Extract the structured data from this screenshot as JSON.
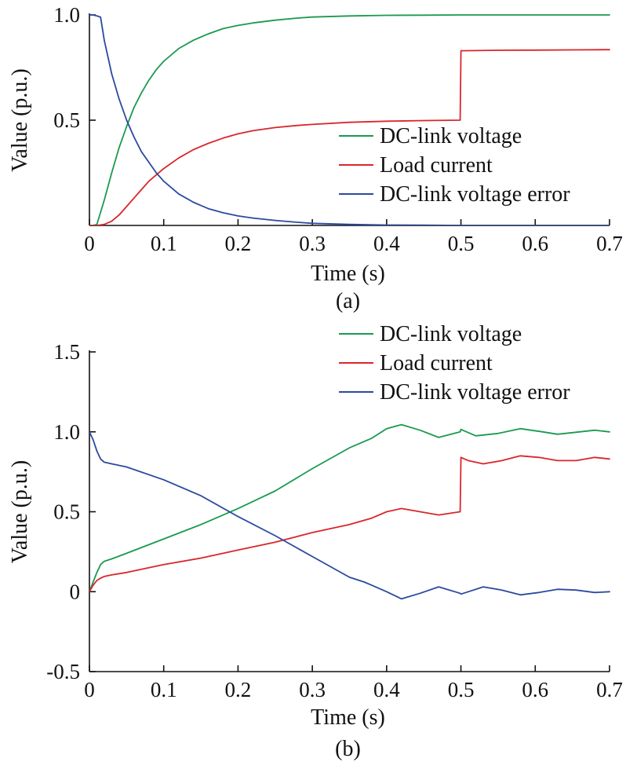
{
  "chart_data": [
    {
      "type": "line",
      "caption": "(a)",
      "xlabel": "Time (s)",
      "ylabel": "Value (p.u.)",
      "xlim": [
        0,
        0.7
      ],
      "ylim": [
        0,
        1.0
      ],
      "x_ticks": [
        0,
        0.1,
        0.2,
        0.3,
        0.4,
        0.5,
        0.6,
        0.7
      ],
      "x_tick_labels": [
        "0",
        "0.1",
        "0.2",
        "0.3",
        "0.4",
        "0.5",
        "0.6",
        "0.7"
      ],
      "y_ticks": [
        0.5,
        1.0
      ],
      "y_tick_labels": [
        "0.5",
        "1.0"
      ],
      "legend_position": "lower-right",
      "grid": false,
      "series": [
        {
          "name": "DC-link voltage",
          "color": "#1a9a50",
          "x": [
            0,
            0.005,
            0.01,
            0.02,
            0.03,
            0.04,
            0.05,
            0.06,
            0.07,
            0.08,
            0.09,
            0.1,
            0.12,
            0.14,
            0.16,
            0.18,
            0.2,
            0.22,
            0.25,
            0.28,
            0.3,
            0.35,
            0.4,
            0.45,
            0.5,
            0.55,
            0.6,
            0.65,
            0.7
          ],
          "y": [
            0,
            0.0,
            0.005,
            0.12,
            0.25,
            0.37,
            0.47,
            0.56,
            0.63,
            0.69,
            0.74,
            0.78,
            0.84,
            0.88,
            0.91,
            0.935,
            0.95,
            0.962,
            0.975,
            0.985,
            0.99,
            0.995,
            0.998,
            0.999,
            1.0,
            1.0,
            1.0,
            1.0,
            1.0
          ]
        },
        {
          "name": "Load current",
          "color": "#d9262c",
          "x": [
            0,
            0.01,
            0.02,
            0.03,
            0.04,
            0.05,
            0.06,
            0.07,
            0.08,
            0.09,
            0.1,
            0.12,
            0.14,
            0.16,
            0.18,
            0.2,
            0.22,
            0.25,
            0.28,
            0.3,
            0.35,
            0.4,
            0.45,
            0.499,
            0.5,
            0.55,
            0.6,
            0.65,
            0.7
          ],
          "y": [
            0,
            0.0,
            0.005,
            0.02,
            0.05,
            0.09,
            0.13,
            0.17,
            0.21,
            0.24,
            0.27,
            0.32,
            0.36,
            0.39,
            0.415,
            0.435,
            0.45,
            0.465,
            0.475,
            0.48,
            0.49,
            0.495,
            0.498,
            0.5,
            0.83,
            0.832,
            0.833,
            0.834,
            0.835
          ]
        },
        {
          "name": "DC-link voltage error",
          "color": "#2b4aa0",
          "x": [
            0,
            0.005,
            0.01,
            0.015,
            0.02,
            0.03,
            0.04,
            0.05,
            0.06,
            0.07,
            0.08,
            0.09,
            0.1,
            0.12,
            0.14,
            0.16,
            0.18,
            0.2,
            0.22,
            0.25,
            0.28,
            0.3,
            0.35,
            0.4,
            0.45,
            0.5,
            0.55,
            0.6,
            0.65,
            0.7
          ],
          "y": [
            1.0,
            1.0,
            0.995,
            0.99,
            0.88,
            0.72,
            0.6,
            0.5,
            0.42,
            0.35,
            0.3,
            0.25,
            0.21,
            0.15,
            0.11,
            0.08,
            0.06,
            0.045,
            0.035,
            0.024,
            0.015,
            0.01,
            0.005,
            0.002,
            0.001,
            0.0,
            0.0,
            0.0,
            0.0,
            0.0
          ]
        }
      ]
    },
    {
      "type": "line",
      "caption": "(b)",
      "xlabel": "Time (s)",
      "ylabel": "Value (p.u.)",
      "xlim": [
        0,
        0.7
      ],
      "ylim": [
        -0.5,
        1.5
      ],
      "x_ticks": [
        0,
        0.1,
        0.2,
        0.3,
        0.4,
        0.5,
        0.6,
        0.7
      ],
      "x_tick_labels": [
        "0",
        "0.1",
        "0.2",
        "0.3",
        "0.4",
        "0.5",
        "0.6",
        "0.7"
      ],
      "y_ticks": [
        -0.5,
        0,
        0.5,
        1.0,
        1.5
      ],
      "y_tick_labels": [
        "-0.5",
        "0",
        "0.5",
        "1.0",
        "1.5"
      ],
      "legend_position": "top-right",
      "grid": false,
      "series": [
        {
          "name": "DC-link voltage",
          "color": "#1a9a50",
          "x": [
            0,
            0.005,
            0.01,
            0.015,
            0.02,
            0.03,
            0.05,
            0.1,
            0.15,
            0.2,
            0.25,
            0.3,
            0.35,
            0.38,
            0.4,
            0.42,
            0.445,
            0.47,
            0.499,
            0.5,
            0.52,
            0.55,
            0.58,
            0.61,
            0.63,
            0.65,
            0.68,
            0.7
          ],
          "y": [
            0,
            0.06,
            0.12,
            0.17,
            0.19,
            0.205,
            0.24,
            0.33,
            0.42,
            0.52,
            0.63,
            0.77,
            0.9,
            0.96,
            1.02,
            1.045,
            1.01,
            0.965,
            1.0,
            1.015,
            0.975,
            0.99,
            1.02,
            1.0,
            0.985,
            0.995,
            1.01,
            1.0
          ]
        },
        {
          "name": "Load current",
          "color": "#d9262c",
          "x": [
            0,
            0.005,
            0.01,
            0.015,
            0.02,
            0.03,
            0.05,
            0.1,
            0.15,
            0.2,
            0.25,
            0.3,
            0.35,
            0.38,
            0.4,
            0.42,
            0.445,
            0.47,
            0.499,
            0.5,
            0.51,
            0.53,
            0.555,
            0.58,
            0.605,
            0.63,
            0.655,
            0.68,
            0.7
          ],
          "y": [
            0,
            0.04,
            0.07,
            0.085,
            0.095,
            0.105,
            0.12,
            0.17,
            0.21,
            0.26,
            0.31,
            0.37,
            0.42,
            0.46,
            0.5,
            0.52,
            0.5,
            0.48,
            0.5,
            0.84,
            0.82,
            0.8,
            0.82,
            0.85,
            0.84,
            0.82,
            0.82,
            0.84,
            0.83
          ]
        },
        {
          "name": "DC-link voltage error",
          "color": "#2b4aa0",
          "x": [
            0,
            0.005,
            0.01,
            0.015,
            0.02,
            0.03,
            0.05,
            0.1,
            0.15,
            0.2,
            0.25,
            0.3,
            0.35,
            0.37,
            0.38,
            0.4,
            0.42,
            0.445,
            0.47,
            0.499,
            0.5,
            0.51,
            0.53,
            0.555,
            0.58,
            0.605,
            0.63,
            0.655,
            0.68,
            0.7
          ],
          "y": [
            1.0,
            0.95,
            0.88,
            0.83,
            0.81,
            0.8,
            0.78,
            0.7,
            0.6,
            0.47,
            0.35,
            0.22,
            0.09,
            0.06,
            0.04,
            0.0,
            -0.045,
            -0.01,
            0.03,
            -0.01,
            -0.015,
            0.0,
            0.03,
            0.01,
            -0.02,
            -0.005,
            0.015,
            0.01,
            -0.005,
            0.0
          ]
        }
      ]
    }
  ]
}
